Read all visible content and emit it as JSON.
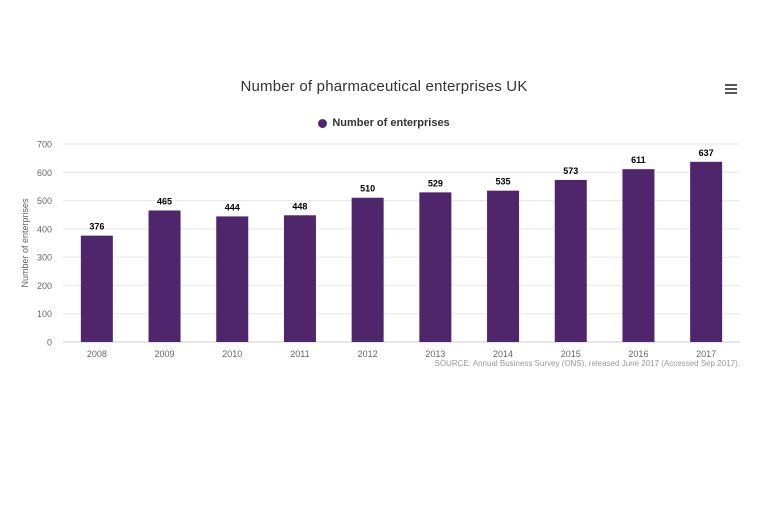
{
  "chart_data": {
    "type": "bar",
    "title": "Number of pharmaceutical enterprises UK",
    "categories": [
      "2008",
      "2009",
      "2010",
      "2011",
      "2012",
      "2013",
      "2014",
      "2015",
      "2016",
      "2017"
    ],
    "series": [
      {
        "name": "Number of enterprises",
        "values": [
          376,
          465,
          444,
          448,
          510,
          529,
          535,
          573,
          611,
          637
        ]
      }
    ],
    "ylabel": "Number of enterprises",
    "xlabel": "",
    "ylim": [
      0,
      700
    ],
    "yticks": [
      0,
      100,
      200,
      300,
      400,
      500,
      600,
      700
    ],
    "grid": true,
    "legend": "top-center",
    "data_labels": true,
    "source": "SOURCE: Annual Business Survey (ONS), released June 2017 (Accessed Sep 2017)."
  },
  "colors": {
    "bar": "#4f266b",
    "grid": "#e6e6e6",
    "axis_text": "#666666"
  },
  "icons": {
    "menu": "hamburger-menu-icon"
  }
}
